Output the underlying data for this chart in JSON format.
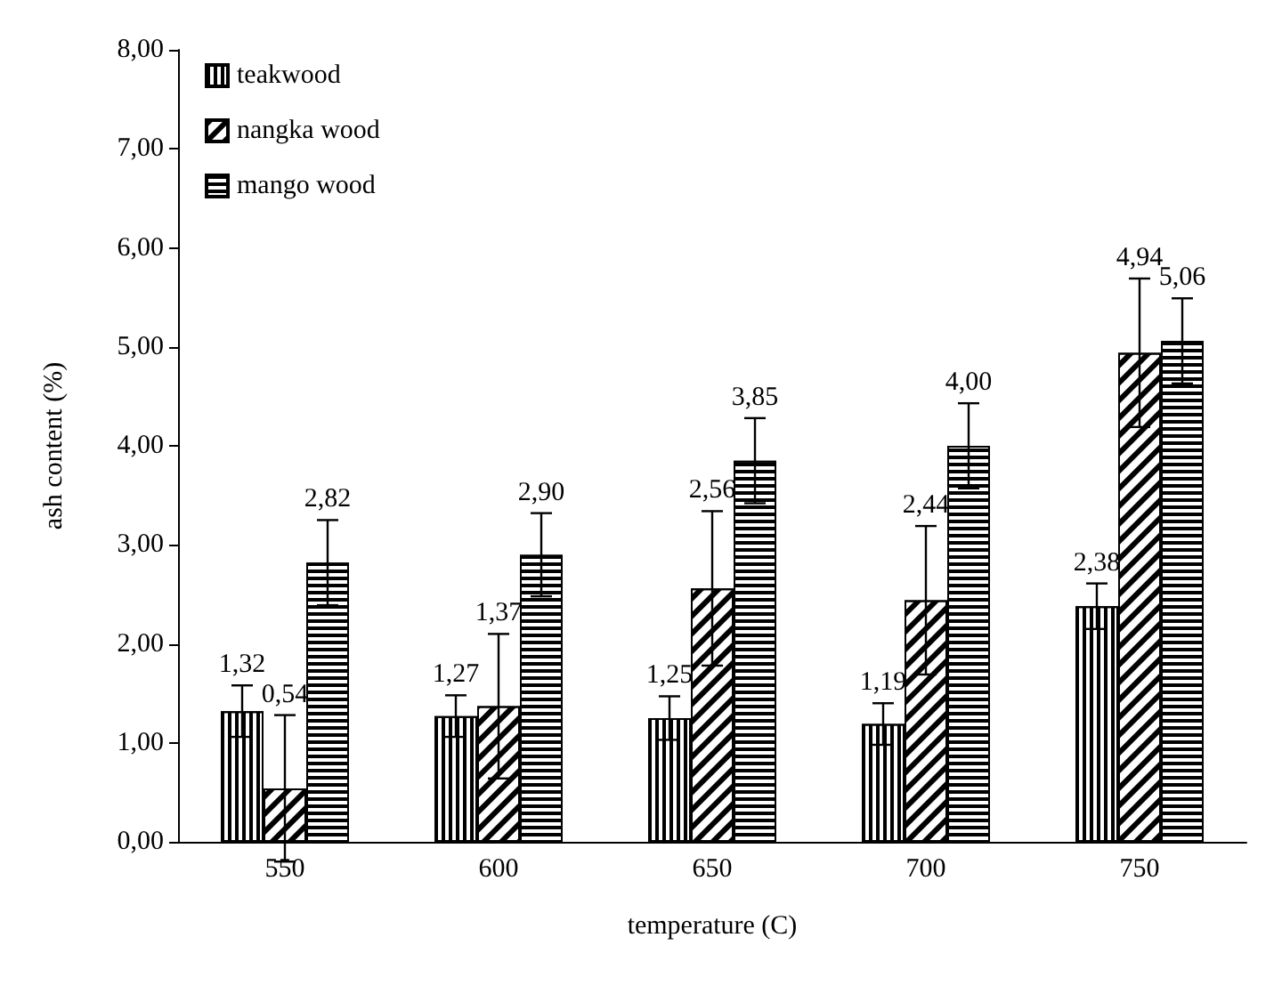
{
  "chart_data": {
    "type": "bar",
    "xlabel": "temperature (C)",
    "ylabel": "ash content (%)",
    "categories": [
      "550",
      "600",
      "650",
      "700",
      "750"
    ],
    "series": [
      {
        "name": "teakwood",
        "color": "#000000",
        "values": [
          1.32,
          1.27,
          1.25,
          1.19,
          2.38
        ],
        "errors": [
          0.26,
          0.21,
          0.22,
          0.21,
          0.23
        ],
        "value_labels": [
          "1,32",
          "1,27",
          "1,25",
          "1,19",
          "2,38"
        ]
      },
      {
        "name": "nangka wood",
        "color": "#000000",
        "values": [
          0.54,
          1.37,
          2.56,
          2.44,
          4.94
        ],
        "errors": [
          0.74,
          0.73,
          0.78,
          0.75,
          0.75
        ],
        "value_labels": [
          "0,54",
          "1,37",
          "2,56",
          "2,44",
          "4,94"
        ]
      },
      {
        "name": "mango wood",
        "color": "#000000",
        "values": [
          2.82,
          2.9,
          3.85,
          4.0,
          5.06
        ],
        "errors": [
          0.43,
          0.42,
          0.43,
          0.43,
          0.43
        ],
        "value_labels": [
          "2,82",
          "2,90",
          "3,85",
          "4,00",
          "5,06"
        ]
      }
    ],
    "ylim": [
      0,
      8
    ],
    "yticks": [
      {
        "value": 0,
        "label": "0,00"
      },
      {
        "value": 1,
        "label": "1,00"
      },
      {
        "value": 2,
        "label": "2,00"
      },
      {
        "value": 3,
        "label": "3,00"
      },
      {
        "value": 4,
        "label": "4,00"
      },
      {
        "value": 5,
        "label": "5,00"
      },
      {
        "value": 6,
        "label": "6,00"
      },
      {
        "value": 7,
        "label": "7,00"
      },
      {
        "value": 8,
        "label": "8,00"
      }
    ],
    "grid": false,
    "legend": "top left"
  }
}
